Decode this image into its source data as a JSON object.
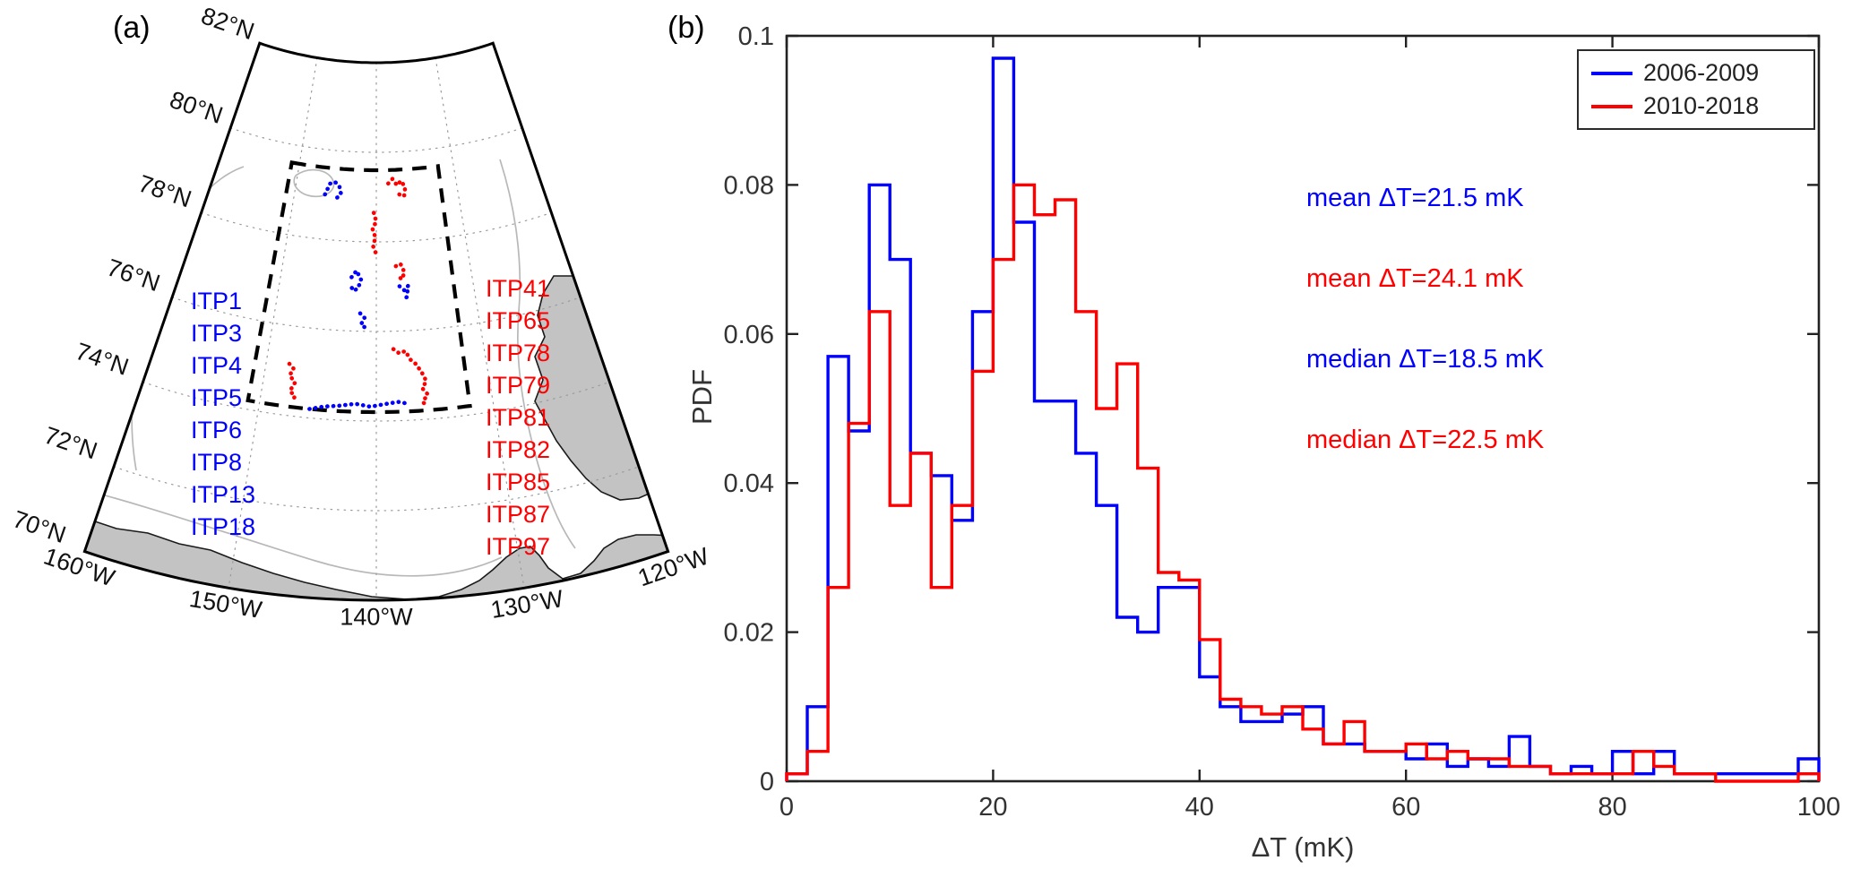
{
  "figure": {
    "panel_a_label": "(a)",
    "panel_b_label": "(b)"
  },
  "map": {
    "lat_tick_labels": [
      "82°N",
      "80°N",
      "78°N",
      "76°N",
      "74°N",
      "72°N",
      "70°N"
    ],
    "lat_tick_values": [
      82,
      80,
      78,
      76,
      74,
      72,
      70
    ],
    "lon_tick_labels": [
      "160°W",
      "150°W",
      "140°W",
      "130°W",
      "120°W"
    ],
    "lon_tick_values": [
      160,
      150,
      140,
      130,
      120
    ],
    "itp_blue_labels": [
      "ITP1",
      "ITP3",
      "ITP4",
      "ITP5",
      "ITP6",
      "ITP8",
      "ITP13",
      "ITP18"
    ],
    "itp_red_labels": [
      "ITP41",
      "ITP65",
      "ITP78",
      "ITP79",
      "ITP81",
      "ITP82",
      "ITP85",
      "ITP87",
      "ITP97"
    ],
    "colors": {
      "blue_tracks": "#0000ff",
      "red_tracks": "#ff0000",
      "land": "#c3c3c3",
      "land_outline": "#1a1a1a",
      "contour": "#b8b8b8",
      "graticule": "#9a9a9a",
      "boundary": "#000000",
      "study_box": "#000000"
    },
    "study_box": {
      "lat_min": 74.2,
      "lat_max": 79.6,
      "lon_w_min": 132,
      "lon_w_max": 151
    },
    "tracks": {
      "blue": [
        [
          [
            146.3,
            79.0
          ],
          [
            145.8,
            79.25
          ],
          [
            145.2,
            79.3
          ],
          [
            144.6,
            79.2
          ],
          [
            144.35,
            79.05
          ],
          [
            144.8,
            78.95
          ],
          [
            145.3,
            79.02
          ]
        ],
        [
          [
            142.6,
            77.2
          ],
          [
            142.1,
            77.35
          ],
          [
            141.6,
            77.15
          ],
          [
            141.9,
            76.95
          ],
          [
            142.4,
            76.9
          ],
          [
            142.7,
            77.05
          ]
        ],
        [
          [
            137.6,
            77.0
          ],
          [
            137.1,
            76.9
          ],
          [
            136.7,
            77.0
          ],
          [
            136.9,
            76.75
          ],
          [
            137.3,
            76.7
          ]
        ],
        [
          [
            141.6,
            76.4
          ],
          [
            141.15,
            76.3
          ],
          [
            141.5,
            76.15
          ],
          [
            141.05,
            76.08
          ]
        ],
        [
          [
            145.7,
            74.2
          ],
          [
            144.5,
            74.28
          ],
          [
            143.2,
            74.32
          ],
          [
            141.8,
            74.38
          ],
          [
            140.5,
            74.32
          ],
          [
            139.2,
            74.38
          ],
          [
            138.1,
            74.42
          ],
          [
            137.4,
            74.38
          ]
        ]
      ],
      "red": [
        [
          [
            138.5,
            79.3
          ],
          [
            137.95,
            79.4
          ],
          [
            137.4,
            79.25
          ],
          [
            136.9,
            79.35
          ],
          [
            136.4,
            79.2
          ],
          [
            136.6,
            79.0
          ],
          [
            137.2,
            79.05
          ]
        ],
        [
          [
            140.3,
            78.65
          ],
          [
            140.0,
            78.45
          ],
          [
            140.45,
            78.3
          ],
          [
            140.1,
            78.1
          ],
          [
            140.35,
            77.9
          ],
          [
            140.05,
            77.75
          ]
        ],
        [
          [
            137.9,
            77.45
          ],
          [
            137.4,
            77.5
          ],
          [
            137.0,
            77.3
          ],
          [
            137.35,
            77.15
          ],
          [
            137.7,
            77.25
          ]
        ],
        [
          [
            147.9,
            75.15
          ],
          [
            147.45,
            75.05
          ],
          [
            147.75,
            74.9
          ],
          [
            147.2,
            74.75
          ],
          [
            147.55,
            74.55
          ],
          [
            147.05,
            74.45
          ],
          [
            147.3,
            74.3
          ]
        ],
        [
          [
            138.4,
            75.6
          ],
          [
            137.85,
            75.5
          ],
          [
            137.3,
            75.55
          ],
          [
            136.85,
            75.35
          ],
          [
            136.4,
            75.25
          ],
          [
            135.9,
            75.05
          ],
          [
            135.55,
            74.85
          ],
          [
            135.95,
            74.7
          ],
          [
            135.5,
            74.55
          ],
          [
            136.0,
            74.4
          ],
          [
            135.7,
            74.3
          ]
        ]
      ]
    }
  },
  "chart_data": {
    "type": "histogram-step",
    "title": "",
    "xlabel": "ΔT (mK)",
    "ylabel": "PDF",
    "xlim": [
      0,
      100
    ],
    "ylim": [
      0,
      0.1
    ],
    "x_ticks": [
      0,
      20,
      40,
      60,
      80,
      100
    ],
    "x_tick_labels": [
      "0",
      "20",
      "40",
      "60",
      "80",
      "100"
    ],
    "y_ticks": [
      0,
      0.02,
      0.04,
      0.06,
      0.08,
      0.1
    ],
    "y_tick_labels": [
      "0",
      "0.02",
      "0.04",
      "0.06",
      "0.08",
      "0.1"
    ],
    "bin_start_mK": 0,
    "bin_width_mK": 2,
    "grid": false,
    "legend_position": "top-right",
    "series": [
      {
        "name": "2006-2009",
        "color": "#0000ff",
        "values": [
          0.001,
          0.01,
          0.057,
          0.047,
          0.08,
          0.07,
          0.044,
          0.041,
          0.035,
          0.063,
          0.097,
          0.075,
          0.051,
          0.051,
          0.044,
          0.037,
          0.022,
          0.02,
          0.026,
          0.026,
          0.014,
          0.01,
          0.008,
          0.008,
          0.009,
          0.01,
          0.005,
          0.005,
          0.004,
          0.004,
          0.003,
          0.005,
          0.002,
          0.003,
          0.002,
          0.006,
          0.002,
          0.001,
          0.002,
          0.001,
          0.004,
          0.001,
          0.004,
          0.001,
          0.001,
          0.001,
          0.001,
          0.001,
          0.001,
          0.003
        ]
      },
      {
        "name": "2010-2018",
        "color": "#ff0000",
        "values": [
          0.001,
          0.004,
          0.026,
          0.048,
          0.063,
          0.037,
          0.044,
          0.026,
          0.037,
          0.055,
          0.07,
          0.08,
          0.076,
          0.078,
          0.063,
          0.05,
          0.056,
          0.042,
          0.028,
          0.027,
          0.019,
          0.011,
          0.01,
          0.009,
          0.01,
          0.007,
          0.005,
          0.008,
          0.004,
          0.004,
          0.005,
          0.003,
          0.004,
          0.003,
          0.003,
          0.002,
          0.002,
          0.001,
          0.001,
          0.001,
          0.001,
          0.004,
          0.002,
          0.001,
          0.001,
          0.0,
          0.0,
          0.0,
          0.0,
          0.001
        ]
      }
    ],
    "annotations": [
      {
        "text": "mean ΔT=21.5 mK",
        "color": "#0000ff"
      },
      {
        "text": "mean ΔT=24.1 mK",
        "color": "#ff0000"
      },
      {
        "text": "median ΔT=18.5 mK",
        "color": "#0000ff"
      },
      {
        "text": "median ΔT=22.5 mK",
        "color": "#ff0000"
      }
    ]
  }
}
